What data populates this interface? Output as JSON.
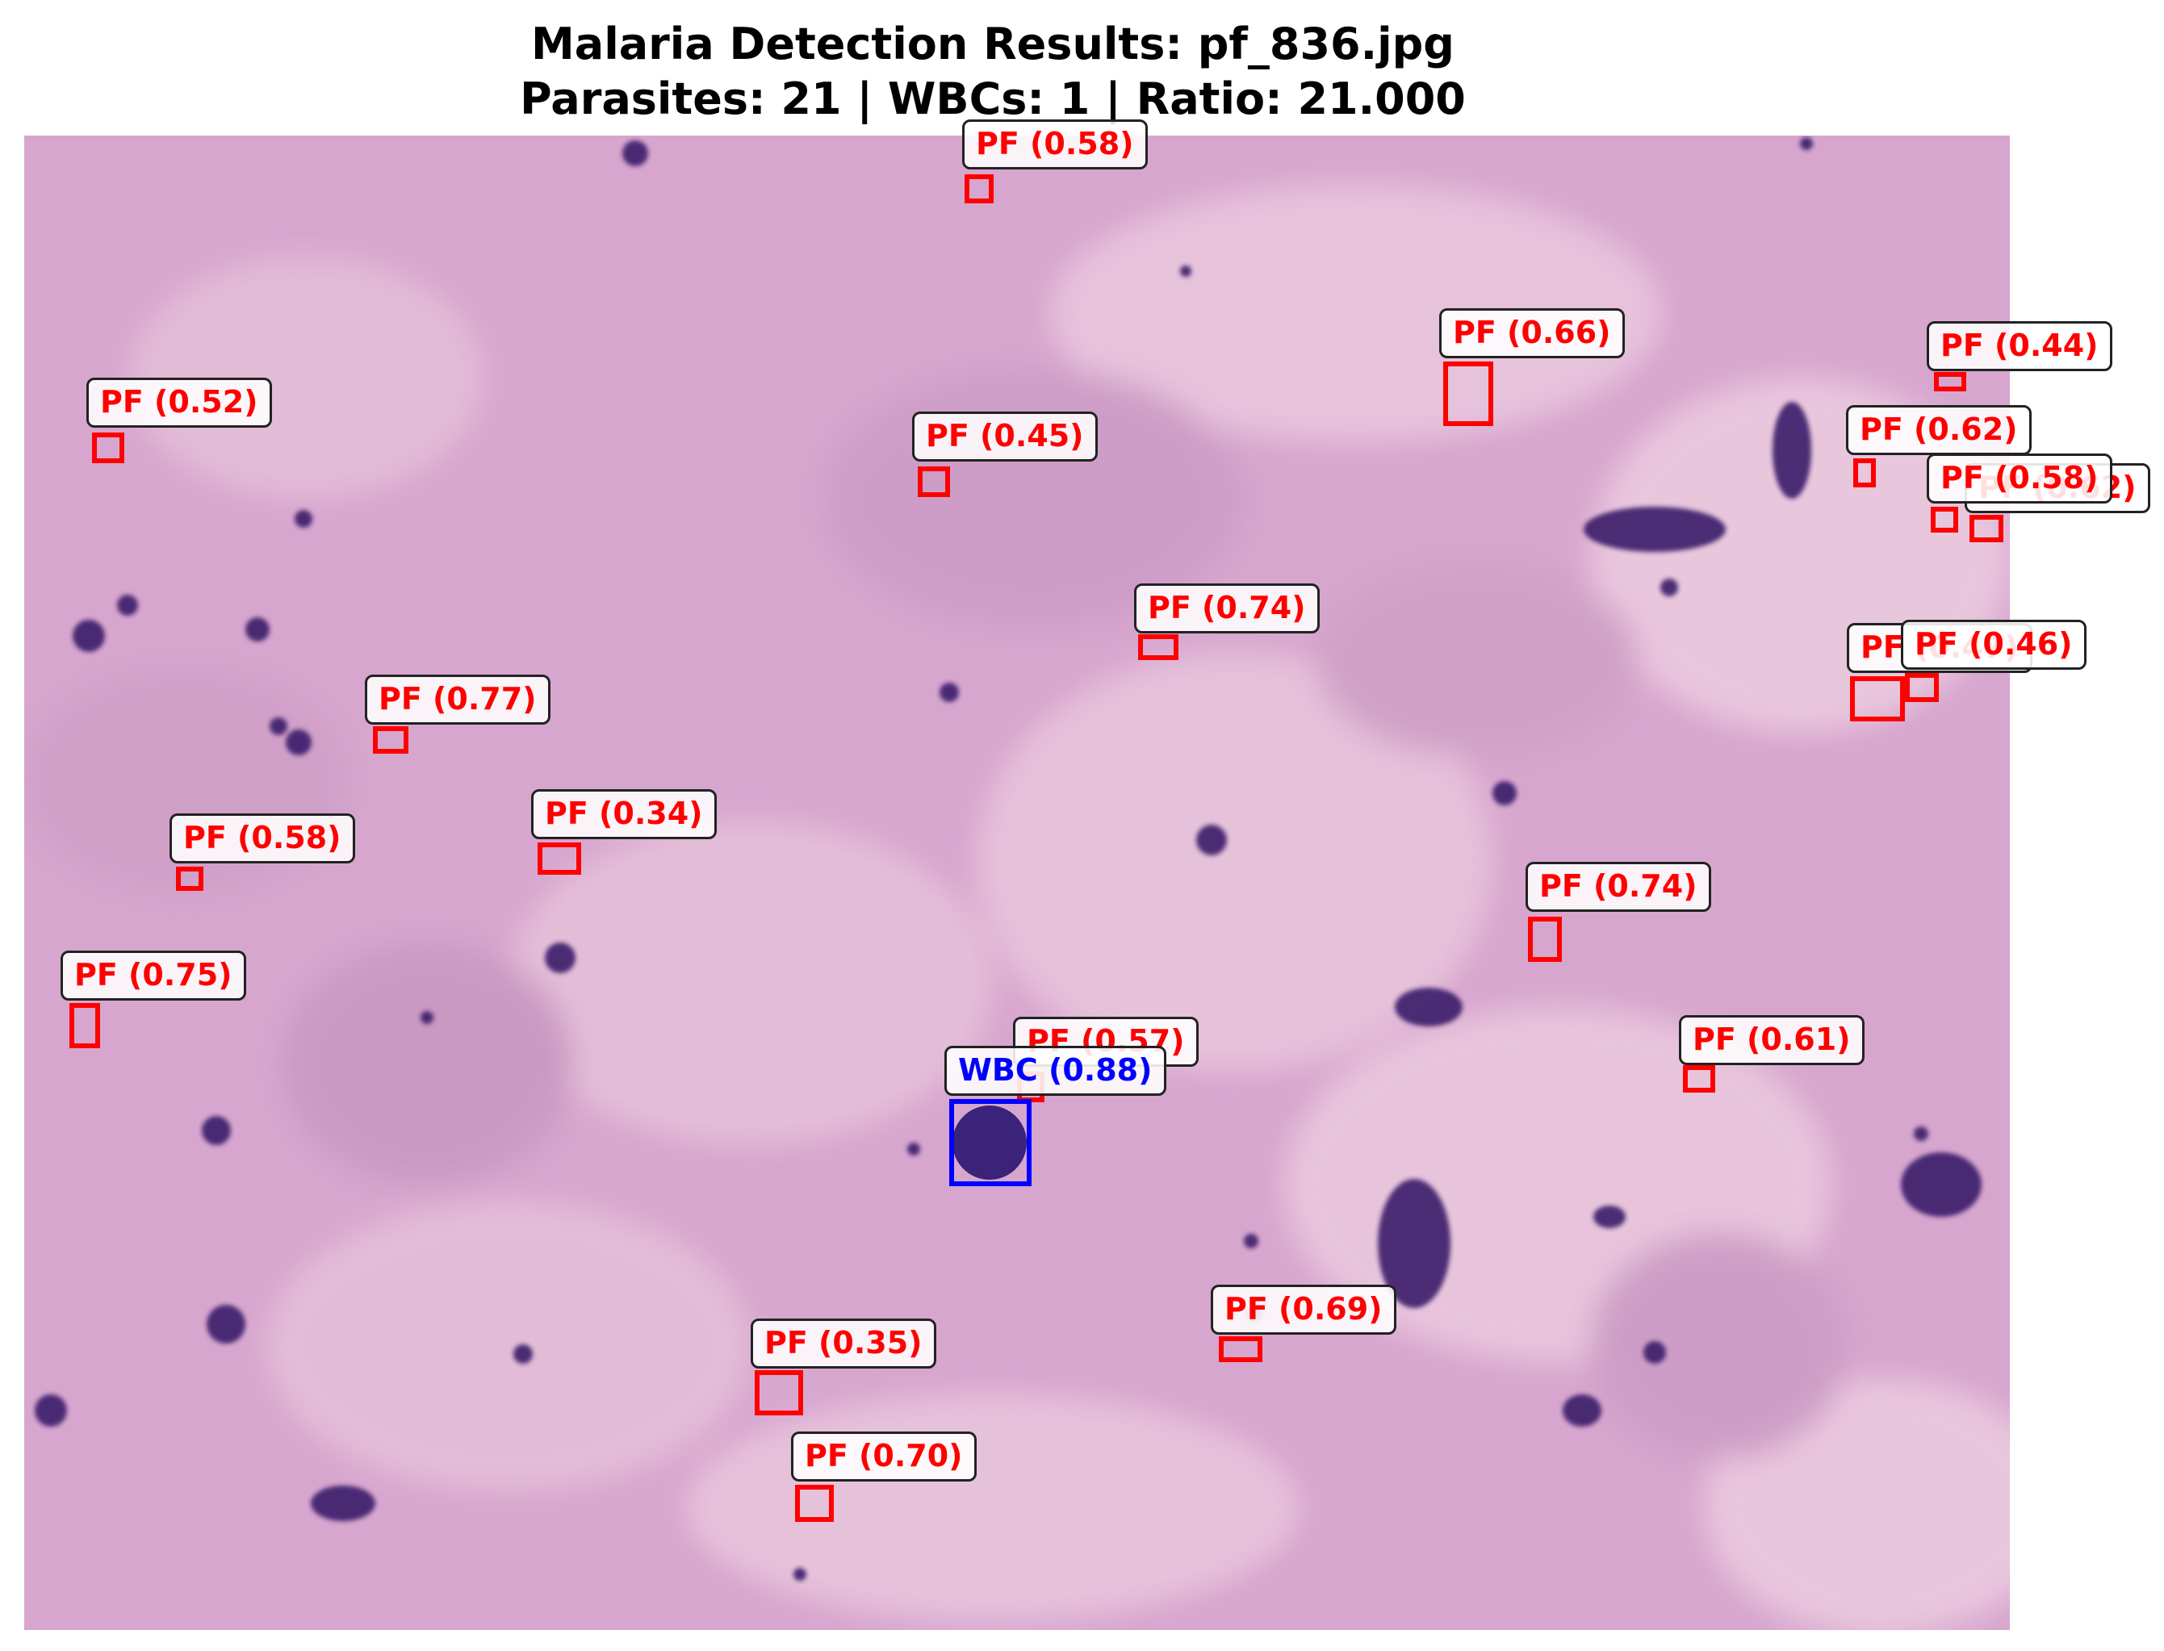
{
  "figure": {
    "title_line1": "Malaria Detection Results: pf_836.jpg",
    "title_line2": "Parasites: 21 | WBCs: 1 | Ratio: 21.000"
  },
  "colors": {
    "parasite_box": "#ff0000",
    "wbc_box": "#0000ff",
    "background": "#d9a9d0",
    "stain": "#3a1f6b"
  },
  "detections": [
    {
      "kind": "parasite",
      "label": "PF (0.58)"
    },
    {
      "kind": "parasite",
      "label": "PF (0.66)"
    },
    {
      "kind": "parasite",
      "label": "PF (0.44)"
    },
    {
      "kind": "parasite",
      "label": "PF (0.52)"
    },
    {
      "kind": "parasite",
      "label": "PF (0.45)"
    },
    {
      "kind": "parasite",
      "label": "PF (0.62)"
    },
    {
      "kind": "parasite",
      "label": "PF (0.62)"
    },
    {
      "kind": "parasite",
      "label": "PF (0.58)"
    },
    {
      "kind": "parasite",
      "label": "PF (0.74)"
    },
    {
      "kind": "parasite",
      "label": "PF (0.77)"
    },
    {
      "kind": "parasite",
      "label": "PF (0.47)"
    },
    {
      "kind": "parasite",
      "label": "PF (0.46)"
    },
    {
      "kind": "parasite",
      "label": "PF (0.58)"
    },
    {
      "kind": "parasite",
      "label": "PF (0.34)"
    },
    {
      "kind": "parasite",
      "label": "PF (0.74)"
    },
    {
      "kind": "parasite",
      "label": "PF (0.75)"
    },
    {
      "kind": "parasite",
      "label": "PF (0.57)"
    },
    {
      "kind": "parasite",
      "label": "PF (0.61)"
    },
    {
      "kind": "parasite",
      "label": "PF (0.69)"
    },
    {
      "kind": "parasite",
      "label": "PF (0.35)"
    },
    {
      "kind": "parasite",
      "label": "PF (0.70)"
    },
    {
      "kind": "wbc",
      "label": "WBC (0.88)"
    }
  ]
}
